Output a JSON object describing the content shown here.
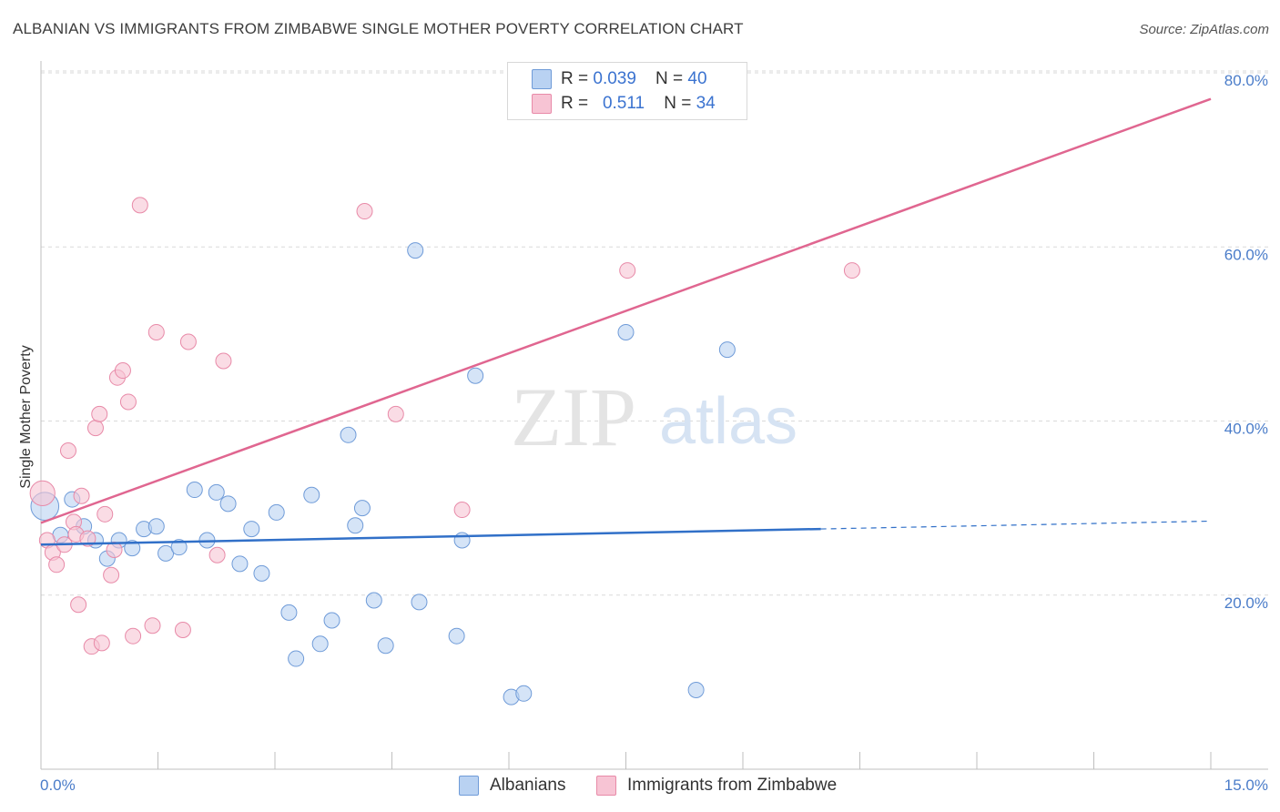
{
  "title": "ALBANIAN VS IMMIGRANTS FROM ZIMBABWE SINGLE MOTHER POVERTY CORRELATION CHART",
  "source": "Source: ZipAtlas.com",
  "watermark": {
    "zip": "ZIP",
    "atlas": "atlas"
  },
  "legend": {
    "rows": [
      {
        "r_label": "R = ",
        "r_value": "0.039",
        "n_label": "N = ",
        "n_value": "40"
      },
      {
        "r_label": "R = ",
        "r_value": "0.511",
        "n_label": "N = ",
        "n_value": "34"
      }
    ]
  },
  "colors": {
    "blue_fill": "#b9d2f2",
    "blue_stroke": "#6f9bd8",
    "blue_line": "#3170c8",
    "pink_fill": "#f7c4d4",
    "pink_stroke": "#e88aa8",
    "pink_line": "#e06690",
    "grid": "#d9d9d9",
    "tick_text": "#4a7cc9"
  },
  "chart_data": {
    "type": "scatter",
    "title": "ALBANIAN VS IMMIGRANTS FROM ZIMBABWE SINGLE MOTHER POVERTY CORRELATION CHART",
    "xlabel": "",
    "ylabel": "Single Mother Poverty",
    "xlim": [
      0,
      15
    ],
    "ylim": [
      0,
      82
    ],
    "x_tick_labels": {
      "left": "0.0%",
      "right": "15.0%"
    },
    "y_ticks": [
      {
        "value": 20,
        "label": "20.0%"
      },
      {
        "value": 40,
        "label": "40.0%"
      },
      {
        "value": 60,
        "label": "60.0%"
      },
      {
        "value": 80,
        "label": "80.0%"
      }
    ],
    "series": [
      {
        "name": "Albanians",
        "R": 0.039,
        "N": 40,
        "trend": {
          "x0": 0,
          "y0": 25.8,
          "x1": 10.0,
          "y1": 27.6,
          "dash_to_x": 15.0,
          "dash_to_y": 28.5
        },
        "points": [
          [
            0.05,
            30.2,
            1.8
          ],
          [
            0.25,
            26.9,
            1
          ],
          [
            0.4,
            31.0,
            1
          ],
          [
            0.55,
            27.9,
            1
          ],
          [
            0.7,
            26.3,
            1
          ],
          [
            0.85,
            24.2,
            1
          ],
          [
            1.0,
            26.3,
            1
          ],
          [
            1.17,
            25.4,
            1
          ],
          [
            1.32,
            27.6,
            1
          ],
          [
            1.48,
            27.9,
            1
          ],
          [
            1.6,
            24.8,
            1
          ],
          [
            1.77,
            25.5,
            1
          ],
          [
            1.97,
            32.1,
            1
          ],
          [
            2.13,
            26.3,
            1
          ],
          [
            2.25,
            31.8,
            1
          ],
          [
            2.4,
            30.5,
            1
          ],
          [
            2.55,
            23.6,
            1
          ],
          [
            2.7,
            27.6,
            1
          ],
          [
            2.83,
            22.5,
            1
          ],
          [
            3.02,
            29.5,
            1
          ],
          [
            3.18,
            18.0,
            1
          ],
          [
            3.27,
            12.7,
            1
          ],
          [
            3.47,
            31.5,
            1
          ],
          [
            3.58,
            14.4,
            1
          ],
          [
            3.73,
            17.1,
            1
          ],
          [
            3.94,
            38.4,
            1
          ],
          [
            4.03,
            28.0,
            1
          ],
          [
            4.12,
            30.0,
            1
          ],
          [
            4.27,
            19.4,
            1
          ],
          [
            4.42,
            14.2,
            1
          ],
          [
            4.8,
            59.6,
            1
          ],
          [
            4.85,
            19.2,
            1
          ],
          [
            5.33,
            15.3,
            1
          ],
          [
            5.4,
            26.3,
            1
          ],
          [
            5.57,
            45.2,
            1
          ],
          [
            6.03,
            8.3,
            1
          ],
          [
            6.19,
            8.7,
            1
          ],
          [
            7.5,
            50.2,
            1
          ],
          [
            8.4,
            9.1,
            1
          ],
          [
            8.8,
            48.2,
            1
          ]
        ]
      },
      {
        "name": "Immigrants from Zimbabwe",
        "R": 0.511,
        "N": 34,
        "trend": {
          "x0": 0,
          "y0": 28.3,
          "x1": 15.0,
          "y1": 77.0
        },
        "points": [
          [
            0.02,
            31.7,
            1.6
          ],
          [
            0.08,
            26.3,
            1
          ],
          [
            0.15,
            24.9,
            1
          ],
          [
            0.2,
            23.5,
            1
          ],
          [
            0.3,
            25.8,
            1
          ],
          [
            0.35,
            36.6,
            1
          ],
          [
            0.42,
            28.4,
            1
          ],
          [
            0.45,
            27.0,
            1
          ],
          [
            0.48,
            18.9,
            1
          ],
          [
            0.52,
            31.4,
            1
          ],
          [
            0.6,
            26.5,
            1
          ],
          [
            0.65,
            14.1,
            1
          ],
          [
            0.7,
            39.2,
            1
          ],
          [
            0.75,
            40.8,
            1
          ],
          [
            0.78,
            14.5,
            1
          ],
          [
            0.82,
            29.3,
            1
          ],
          [
            0.9,
            22.3,
            1
          ],
          [
            0.94,
            25.2,
            1
          ],
          [
            0.98,
            45.0,
            1
          ],
          [
            1.05,
            45.8,
            1
          ],
          [
            1.12,
            42.2,
            1
          ],
          [
            1.18,
            15.3,
            1
          ],
          [
            1.27,
            64.8,
            1
          ],
          [
            1.43,
            16.5,
            1
          ],
          [
            1.48,
            50.2,
            1
          ],
          [
            1.82,
            16.0,
            1
          ],
          [
            1.89,
            49.1,
            1
          ],
          [
            2.26,
            24.6,
            1
          ],
          [
            2.34,
            46.9,
            1
          ],
          [
            4.15,
            64.1,
            1
          ],
          [
            4.55,
            40.8,
            1
          ],
          [
            5.4,
            29.8,
            1
          ],
          [
            7.52,
            57.3,
            1
          ],
          [
            10.4,
            57.3,
            1
          ]
        ]
      }
    ]
  },
  "bottom_legend": [
    "Albanians",
    "Immigrants from Zimbabwe"
  ]
}
